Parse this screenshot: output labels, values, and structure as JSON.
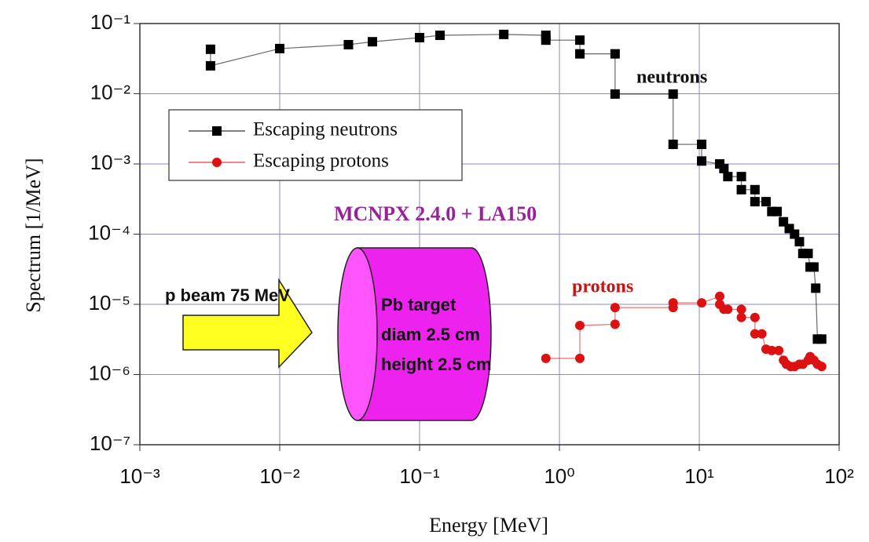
{
  "chart_data": {
    "type": "scatter",
    "x_label": "Energy [MeV]",
    "y_label": "Spectrum [1/MeV]",
    "log_x": true,
    "log_y": true,
    "grid": true,
    "xlim": [
      0.001,
      100
    ],
    "ylim": [
      1e-07,
      0.1
    ],
    "xticks": [
      {
        "value": 0.001,
        "label": "10⁻³"
      },
      {
        "value": 0.01,
        "label": "10⁻²"
      },
      {
        "value": 0.1,
        "label": "10⁻¹"
      },
      {
        "value": 1,
        "label": "10⁰"
      },
      {
        "value": 10,
        "label": "10¹"
      },
      {
        "value": 100,
        "label": "10²"
      }
    ],
    "yticks": [
      {
        "value": 1e-07,
        "label": "10⁻⁷"
      },
      {
        "value": 1e-06,
        "label": "10⁻⁶"
      },
      {
        "value": 1e-05,
        "label": "10⁻⁵"
      },
      {
        "value": 0.0001,
        "label": "10⁻⁴"
      },
      {
        "value": 0.001,
        "label": "10⁻³"
      },
      {
        "value": 0.01,
        "label": "10⁻²"
      },
      {
        "value": 0.1,
        "label": "10⁻¹"
      }
    ],
    "legend_position": "upper left",
    "annotations": [
      "neutrons",
      "protons",
      "MCNPX 2.4.0 + LA150",
      "p beam 75 MeV",
      "Pb target",
      "diam 2.5 cm",
      "height 2.5 cm"
    ],
    "series": [
      {
        "name": "Escaping neutrons",
        "color": "#000000",
        "marker": "square",
        "x": [
          0.0032,
          0.0032,
          0.01,
          0.031,
          0.046,
          0.1,
          0.14,
          0.4,
          0.8,
          0.8,
          1.4,
          1.4,
          2.5,
          2.5,
          6.5,
          6.5,
          10.4,
          10.4,
          14,
          15,
          16,
          20,
          20,
          25,
          25,
          30,
          33,
          36,
          40,
          44,
          48,
          52,
          55,
          60,
          62,
          66,
          68,
          70,
          75
        ],
        "values": [
          0.043,
          0.025,
          0.044,
          0.05,
          0.055,
          0.063,
          0.068,
          0.07,
          0.068,
          0.058,
          0.058,
          0.037,
          0.037,
          0.0099,
          0.0099,
          0.0019,
          0.0019,
          0.0011,
          0.001,
          0.00086,
          0.00066,
          0.00066,
          0.00043,
          0.00043,
          0.00029,
          0.00029,
          0.00021,
          0.00021,
          0.00015,
          0.00012,
          0.0001,
          7.8e-05,
          5.3e-05,
          5.3e-05,
          3.4e-05,
          3.4e-05,
          1.7e-05,
          3.2e-06,
          3.2e-06
        ]
      },
      {
        "name": "Escaping protons",
        "color": "#dd1111",
        "marker": "circle",
        "x": [
          0.8,
          1.4,
          1.4,
          2.5,
          2.5,
          6.5,
          6.5,
          10.4,
          14,
          14,
          15,
          16,
          20,
          20,
          25,
          25,
          28,
          30,
          33,
          37,
          40,
          42,
          45,
          48,
          52,
          55,
          60,
          62,
          66,
          70,
          75
        ],
        "values": [
          1.7e-06,
          1.7e-06,
          5e-06,
          5.2e-06,
          9e-06,
          9e-06,
          1.05e-05,
          1.05e-05,
          1.3e-05,
          1e-05,
          8.5e-06,
          8.5e-06,
          8.5e-06,
          6.5e-06,
          6.5e-06,
          3.8e-06,
          3.8e-06,
          2.3e-06,
          2.2e-06,
          2.2e-06,
          1.6e-06,
          1.4e-06,
          1.3e-06,
          1.3e-06,
          1.4e-06,
          1.4e-06,
          1.6e-06,
          1.8e-06,
          1.6e-06,
          1.4e-06,
          1.3e-06
        ]
      }
    ]
  }
}
